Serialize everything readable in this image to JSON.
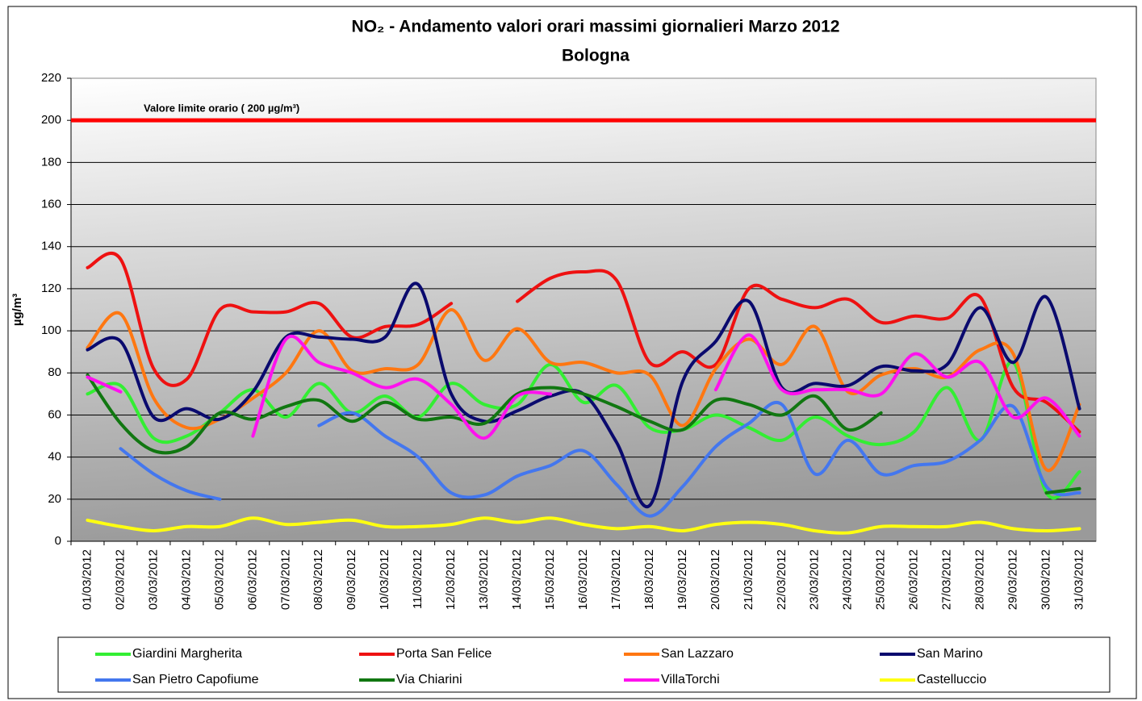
{
  "chart_data": {
    "type": "line",
    "title": "NO₂ - Andamento valori orari massimi giornalieri Marzo 2012",
    "subtitle": "Bologna",
    "y_label": "µg/m³",
    "limit_line": {
      "value": 200,
      "label": "Valore limite orario ( 200 µg/m³)",
      "color": "#ff0000"
    },
    "categories": [
      "01/03/2012",
      "02/03/2012",
      "03/03/2012",
      "04/03/2012",
      "05/03/2012",
      "06/03/2012",
      "07/03/2012",
      "08/03/2012",
      "09/03/2012",
      "10/03/2012",
      "11/03/2012",
      "12/03/2012",
      "13/03/2012",
      "14/03/2012",
      "15/03/2012",
      "16/03/2012",
      "17/03/2012",
      "18/03/2012",
      "19/03/2012",
      "20/03/2012",
      "21/03/2012",
      "22/03/2012",
      "23/03/2012",
      "24/03/2012",
      "25/03/2012",
      "26/03/2012",
      "27/03/2012",
      "28/03/2012",
      "29/03/2012",
      "30/03/2012",
      "31/03/2012"
    ],
    "series": [
      {
        "name": "Giardini Margherita",
        "color": "#33ee33",
        "values": [
          70,
          74,
          49,
          50,
          61,
          72,
          59,
          75,
          61,
          69,
          59,
          75,
          65,
          65,
          84,
          66,
          74,
          54,
          53,
          60,
          54,
          48,
          59,
          50,
          46,
          52,
          73,
          48,
          85,
          23,
          33
        ]
      },
      {
        "name": "Porta San Felice",
        "color": "#ee1111",
        "values": [
          130,
          134,
          82,
          77,
          110,
          109,
          109,
          113,
          97,
          102,
          103,
          113,
          null,
          114,
          125,
          128,
          124,
          85,
          90,
          84,
          120,
          115,
          111,
          115,
          104,
          107,
          106,
          116,
          73,
          66,
          52
        ]
      },
      {
        "name": "San Lazzaro",
        "color": "#ff7711",
        "values": [
          92,
          108,
          68,
          54,
          58,
          68,
          80,
          100,
          81,
          82,
          84,
          110,
          86,
          101,
          85,
          85,
          80,
          79,
          55,
          82,
          96,
          84,
          102,
          71,
          79,
          82,
          78,
          91,
          89,
          34,
          65
        ]
      },
      {
        "name": "San Marino",
        "color": "#0a0a6e",
        "values": [
          91,
          95,
          59,
          63,
          58,
          71,
          97,
          97,
          96,
          97,
          122,
          70,
          57,
          62,
          69,
          70,
          47,
          17,
          76,
          95,
          114,
          73,
          75,
          74,
          83,
          81,
          84,
          111,
          85,
          116,
          63
        ]
      },
      {
        "name": "San Pietro Capofiume",
        "color": "#4477ee",
        "values": [
          null,
          44,
          32,
          24,
          20,
          null,
          null,
          55,
          61,
          50,
          40,
          23,
          22,
          31,
          36,
          43,
          27,
          12,
          26,
          45,
          56,
          65,
          32,
          48,
          32,
          36,
          38,
          48,
          64,
          26,
          23
        ]
      },
      {
        "name": "Via Chiarini",
        "color": "#117711",
        "values": [
          79,
          56,
          43,
          45,
          61,
          58,
          64,
          67,
          57,
          66,
          58,
          59,
          56,
          70,
          73,
          70,
          64,
          57,
          53,
          67,
          65,
          60,
          69,
          53,
          61,
          null,
          null,
          null,
          null,
          23,
          25
        ]
      },
      {
        "name": "VillaTorchi",
        "color": "#ff11ee",
        "values": [
          78,
          71,
          null,
          null,
          null,
          50,
          96,
          85,
          80,
          73,
          77,
          65,
          49,
          69,
          70,
          null,
          null,
          null,
          null,
          72,
          98,
          72,
          72,
          72,
          70,
          89,
          78,
          85,
          59,
          68,
          50
        ]
      },
      {
        "name": "Castelluccio",
        "color": "#ffff11",
        "values": [
          10,
          7,
          5,
          7,
          7,
          11,
          8,
          9,
          10,
          7,
          7,
          8,
          11,
          9,
          11,
          8,
          6,
          7,
          5,
          8,
          9,
          8,
          5,
          4,
          7,
          7,
          7,
          9,
          6,
          5,
          6
        ]
      }
    ],
    "ylim": [
      0,
      220
    ],
    "yticks": [
      0,
      20,
      40,
      60,
      80,
      100,
      120,
      140,
      160,
      180,
      200,
      220
    ],
    "grid": true
  }
}
